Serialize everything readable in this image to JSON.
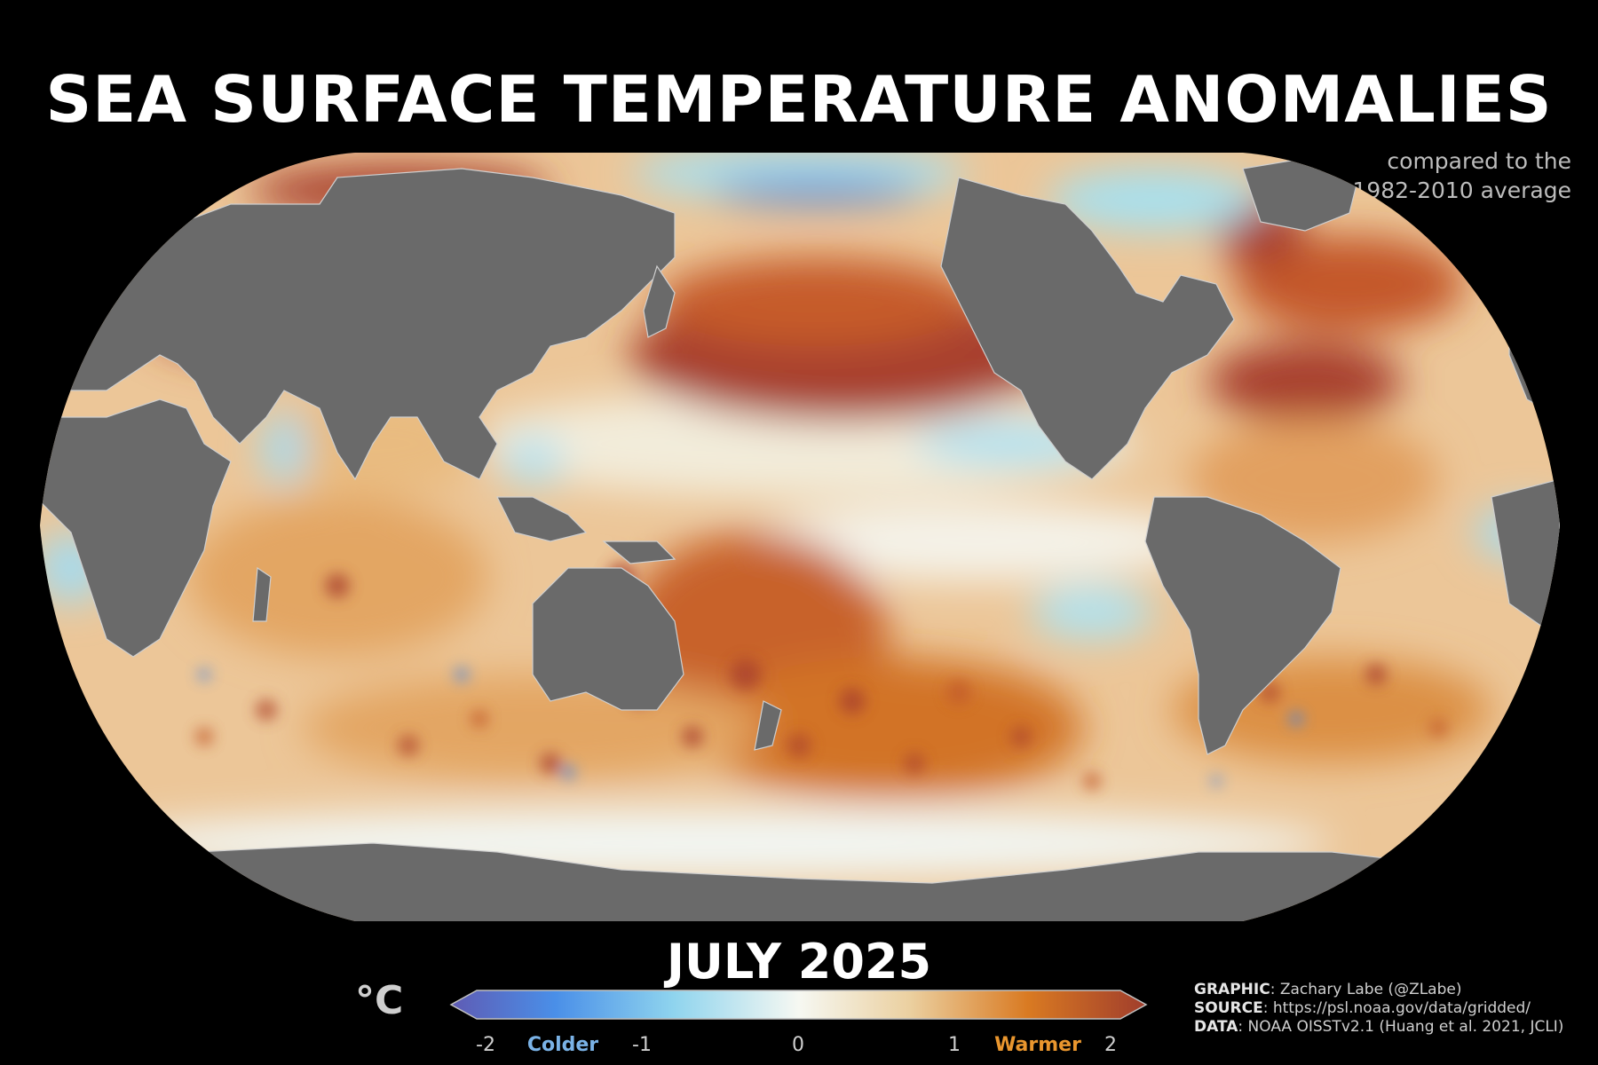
{
  "title": "SEA SURFACE TEMPERATURE ANOMALIES",
  "subtitle_line1": "compared to the",
  "subtitle_line2": "1982-2010 average",
  "period": "JULY 2025",
  "colorbar": {
    "unit": "°C",
    "ticks": [
      "-2",
      "-1",
      "0",
      "1",
      "2"
    ],
    "cold_label": "Colder",
    "warm_label": "Warmer",
    "colors": [
      "#5f5bb4",
      "#4a8fe8",
      "#8fd4ee",
      "#f6f8f2",
      "#ebd0a0",
      "#d97a22",
      "#a03d2c"
    ]
  },
  "credits": {
    "graphic_key": "GRAPHIC",
    "graphic_val": ": Zachary Labe (@ZLabe)",
    "source_key": "SOURCE",
    "source_val": ": https://psl.noaa.gov/data/gridded/",
    "data_key": "DATA",
    "data_val": ": NOAA OISSTv2.1 (Huang et al. 2021, JCLI)"
  },
  "map": {
    "projection": "Robinson (Pacific-centered)",
    "land_color": "#6a6a6a",
    "palette": {
      "warm_strong": "#a8402f",
      "warm": "#d5782a",
      "warm_light": "#ecc698",
      "neutral": "#f4f2e8",
      "cool": "#9fdcee",
      "cold": "#4b86de",
      "ice": "#e4f6fa"
    }
  }
}
